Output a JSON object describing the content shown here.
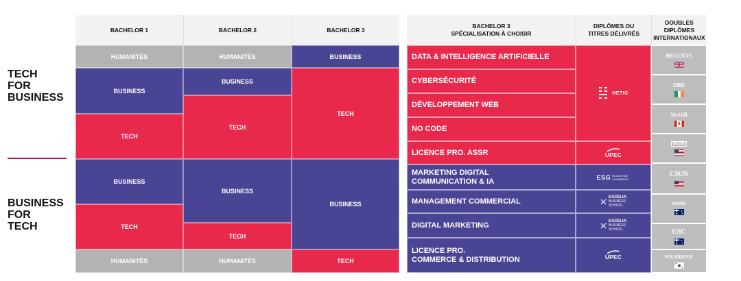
{
  "side_labels": {
    "tech_for_business": [
      "TECH",
      "FOR",
      "BUSINESS"
    ],
    "business_for_tech": [
      "BUSINESS",
      "FOR",
      "TECH"
    ]
  },
  "headers": {
    "bachelor1": "BACHELOR 1",
    "bachelor2": "BACHELOR 2",
    "bachelor3": "BACHELOR 3",
    "specialisation_line1": "BACHELOR 3",
    "specialisation_line2": "SPÉCIALISATION À CHOISIR",
    "diplomes_line1": "DIPLÔMES OU",
    "diplomes_line2": "TITRES DÉLIVRÉS",
    "doubles_line1": "DOUBLES DIPLÔMES",
    "doubles_line2": "INTERNATIONAUX"
  },
  "cells": {
    "humanites": "HUMANITÉS",
    "business": "BUSINESS",
    "tech": "TECH"
  },
  "specialisations": [
    [
      "DATA & INTELLIGENCE ARTIFICIELLE"
    ],
    [
      "CYBERSÉCURITÉ"
    ],
    [
      "DÉVELOPPEMENT WEB"
    ],
    [
      "NO CODE"
    ],
    [
      "LICENCE PRO. ASSR"
    ],
    [
      "MARKETING DIGITAL",
      "COMMUNICATION & IA"
    ],
    [
      "MANAGEMENT COMMERCIAL"
    ],
    [
      "DIGITAL MARKETING"
    ],
    [
      "LICENCE PRO.",
      "COMMERCE & DISTRIBUTION"
    ]
  ],
  "diplomas": {
    "hetic": "HETIC",
    "upec": "UPEC",
    "esg": "ESG",
    "esg_sub": "ÉCOLES DE COMMERCE",
    "excelia": "EXCELIA",
    "excelia_sub1": "BUSINESS",
    "excelia_sub2": "SCHOOL"
  },
  "international": {
    "regents": "REGENTS",
    "dbs": "DBS",
    "mcgill": "McGill",
    "dcsb": "DCSB",
    "csun": "CSUN",
    "griffith": "Griffith",
    "usc": "USC",
    "soldridge": "SOLBRIDGE"
  },
  "colors": {
    "tech_red": "#e8294b",
    "business_blue": "#4a4494",
    "humanites_gray": "#b3b3b3",
    "header_bg": "#f2f2f2",
    "divider": "#c2185b"
  }
}
